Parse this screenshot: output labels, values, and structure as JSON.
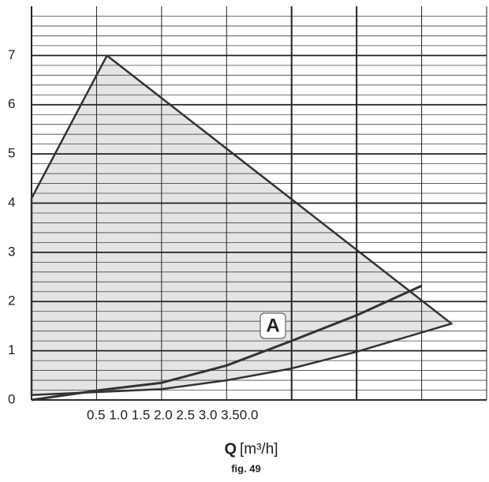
{
  "chart_data": {
    "type": "line",
    "xlim": [
      0,
      3.5
    ],
    "ylim": [
      0,
      8
    ],
    "yticks": [
      0,
      1,
      2,
      3,
      4,
      5,
      6,
      7
    ],
    "minor_ystep": 0.2,
    "xgrid": [
      0.5,
      1.0,
      1.5,
      2.0,
      2.5,
      3.0
    ],
    "x_tick_text": "0.5 1.0 1.5 2.0 2.5 3.0 3.50.0",
    "xlabel_symbol": "Q",
    "xlabel_unit": "[m³/h]",
    "caption": "fig. 49",
    "grid": true,
    "series": [
      {
        "color": "#333333",
        "fill": "#e4e4e4",
        "x": [
          0,
          0.58,
          3.23,
          2.5,
          2.0,
          1.5,
          1.0,
          0,
          0
        ],
        "values": [
          4.1,
          7.0,
          1.55,
          0.98,
          0.64,
          0.4,
          0.22,
          0.1,
          4.1
        ]
      },
      {
        "name": "A",
        "color": "#333333",
        "x": [
          0,
          0.5,
          1.0,
          1.5,
          2.0,
          2.5,
          3.0
        ],
        "values": [
          0,
          0.19,
          0.35,
          0.7,
          1.2,
          1.72,
          2.32
        ]
      }
    ]
  }
}
